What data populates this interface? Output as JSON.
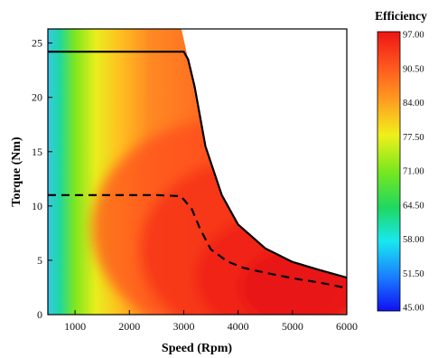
{
  "chart_data": {
    "type": "heatmap",
    "title": "",
    "xlabel": "Speed (Rpm)",
    "ylabel": "Torque (Nm)",
    "xlim": [
      500,
      6000
    ],
    "ylim": [
      0,
      26.3
    ],
    "xticks": [
      1000,
      2000,
      3000,
      4000,
      5000,
      6000
    ],
    "yticks": [
      0,
      5,
      10,
      15,
      20,
      25
    ],
    "grid": false,
    "colorbar": {
      "title": "Efficiency",
      "min": 45.0,
      "max": 97.0,
      "ticks": [
        "97.00",
        "90.50",
        "84.00",
        "77.50",
        "71.00",
        "64.50",
        "58.00",
        "51.50",
        "45.00"
      ]
    },
    "series": [
      {
        "style": "solid",
        "x": [
          500,
          2000,
          3000,
          3080,
          3200,
          3400,
          3700,
          4000,
          4500,
          5000,
          5500,
          6000
        ],
        "y": [
          24.2,
          24.2,
          24.2,
          23.5,
          21.0,
          15.5,
          11.0,
          8.3,
          6.1,
          4.85,
          4.1,
          3.4
        ]
      },
      {
        "style": "dashed",
        "x": [
          500,
          1500,
          2500,
          2950,
          3150,
          3300,
          3500,
          3800,
          4100,
          4500,
          5000,
          5500,
          6000
        ],
        "y": [
          11.0,
          11.0,
          11.0,
          10.9,
          9.7,
          7.9,
          6.0,
          4.9,
          4.3,
          3.85,
          3.35,
          2.95,
          2.45
        ]
      }
    ]
  }
}
